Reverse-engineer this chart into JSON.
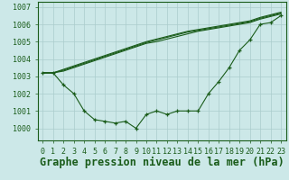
{
  "title": "Graphe pression niveau de la mer (hPa)",
  "bg_color": "#cce8e8",
  "grid_color": "#aacccc",
  "line_color": "#1a5c1a",
  "xlim": [
    -0.5,
    23.5
  ],
  "ylim": [
    999.3,
    1007.3
  ],
  "yticks": [
    1000,
    1001,
    1002,
    1003,
    1004,
    1005,
    1006,
    1007
  ],
  "xticks": [
    0,
    1,
    2,
    3,
    4,
    5,
    6,
    7,
    8,
    9,
    10,
    11,
    12,
    13,
    14,
    15,
    16,
    17,
    18,
    19,
    20,
    21,
    22,
    23
  ],
  "series_main": [
    1003.2,
    1003.2,
    1002.5,
    1002.0,
    1001.0,
    1000.5,
    1000.4,
    1000.3,
    1000.4,
    1000.0,
    1000.8,
    1001.0,
    1000.8,
    1001.0,
    1001.0,
    1001.0,
    1002.0,
    1002.7,
    1003.5,
    1004.5,
    1005.1,
    1006.0,
    1006.1,
    1006.5
  ],
  "series_line1": [
    1003.2,
    1003.2,
    1003.3,
    1003.5,
    1003.7,
    1003.9,
    1004.1,
    1004.3,
    1004.5,
    1004.7,
    1004.9,
    1005.0,
    1005.15,
    1005.3,
    1005.45,
    1005.6,
    1005.7,
    1005.8,
    1005.9,
    1006.0,
    1006.1,
    1006.3,
    1006.45,
    1006.6
  ],
  "series_line2": [
    1003.2,
    1003.2,
    1003.35,
    1003.55,
    1003.75,
    1003.95,
    1004.15,
    1004.35,
    1004.55,
    1004.75,
    1004.95,
    1005.1,
    1005.25,
    1005.4,
    1005.55,
    1005.65,
    1005.75,
    1005.85,
    1005.95,
    1006.05,
    1006.15,
    1006.35,
    1006.5,
    1006.65
  ],
  "series_line3": [
    1003.2,
    1003.2,
    1003.4,
    1003.6,
    1003.8,
    1004.0,
    1004.2,
    1004.4,
    1004.6,
    1004.8,
    1005.0,
    1005.15,
    1005.3,
    1005.45,
    1005.6,
    1005.7,
    1005.8,
    1005.9,
    1006.0,
    1006.1,
    1006.2,
    1006.4,
    1006.55,
    1006.7
  ],
  "title_fontsize": 8.5,
  "tick_fontsize": 6.0
}
